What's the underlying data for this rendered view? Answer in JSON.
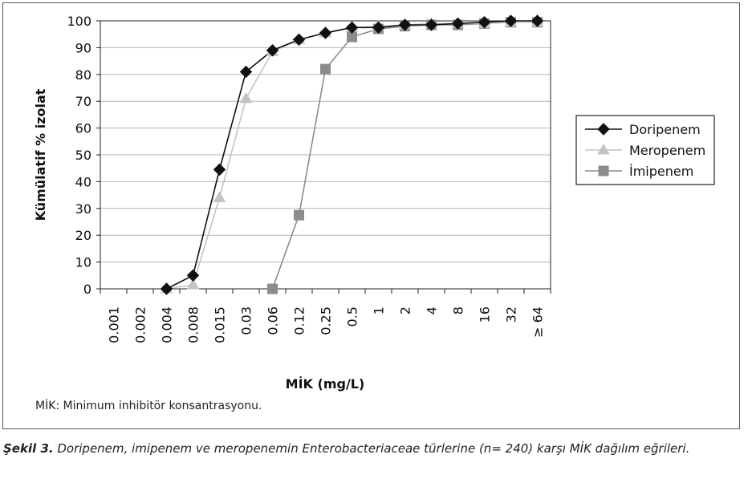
{
  "chart_data": {
    "type": "line",
    "ylabel": "Kümülatif % izolat",
    "xlabel": "MİK (mg/L)",
    "ylim": [
      0,
      100
    ],
    "yticks": [
      0,
      10,
      20,
      30,
      40,
      50,
      60,
      70,
      80,
      90,
      100
    ],
    "categories": [
      "0.001",
      "0.002",
      "0.004",
      "0.008",
      "0.015",
      "0.03",
      "0.06",
      "0.12",
      "0.25",
      "0.5",
      "1",
      "2",
      "4",
      "8",
      "16",
      "32",
      "≥ 64"
    ],
    "grid": "horizontal",
    "legend_position": "right",
    "series": [
      {
        "name": "Doripenem",
        "marker": "diamond",
        "color": "#111111",
        "values": [
          null,
          null,
          0,
          5,
          44.5,
          81,
          89,
          93,
          95.5,
          97.5,
          97.5,
          98.5,
          98.5,
          99,
          99.5,
          100,
          100
        ]
      },
      {
        "name": "Meropenem",
        "marker": "triangle",
        "color": "#c4c4c4",
        "values": [
          null,
          null,
          0,
          1.5,
          34,
          71,
          88.5,
          93,
          95.5,
          97.5,
          98,
          98.5,
          99,
          99,
          99,
          99.5,
          99.5
        ]
      },
      {
        "name": "İmipenem",
        "marker": "square",
        "color": "#8c8c8c",
        "values": [
          null,
          null,
          null,
          null,
          null,
          null,
          0,
          27.5,
          82,
          94,
          97,
          98,
          98.5,
          98.5,
          99,
          99.5,
          99.5
        ]
      }
    ]
  },
  "footnote": "MİK: Minimum inhibitör konsantrasyonu.",
  "caption": {
    "label": "Şekil 3.",
    "text": " Doripenem, imipenem ve meropenemin Enterobacteriaceae türlerine (n= 240) karşı MİK dağılım eğrileri."
  }
}
